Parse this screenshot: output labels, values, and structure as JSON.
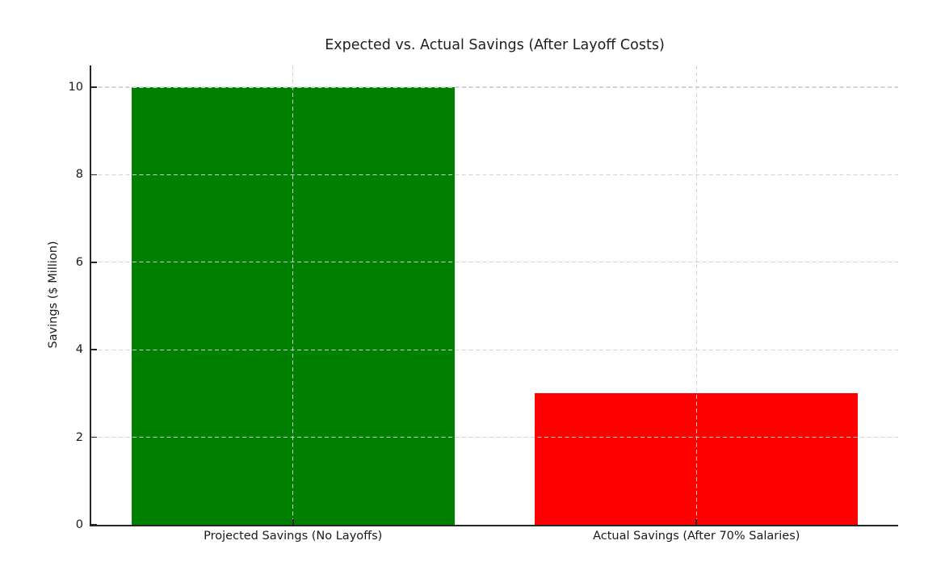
{
  "chart_data": {
    "type": "bar",
    "title": "Expected vs. Actual Savings (After Layoff Costs)",
    "xlabel": "",
    "ylabel": "Savings ($ Million)",
    "categories": [
      "Projected Savings (No Layoffs)",
      "Actual Savings (After 70% Salaries)"
    ],
    "values": [
      10,
      3
    ],
    "bar_colors": [
      "#008000",
      "#ff0000"
    ],
    "bar_width_fraction": 0.8,
    "yticks": [
      0,
      2,
      4,
      6,
      8,
      10
    ],
    "ylim": [
      0,
      10.5
    ],
    "grid": {
      "style": "dashed",
      "axes": "both",
      "color": "#d3d3d3",
      "above_bars": true
    },
    "legend": "none",
    "background_color": "#ffffff",
    "spine_color": "#262626",
    "text_color": "#1a1a1a"
  }
}
